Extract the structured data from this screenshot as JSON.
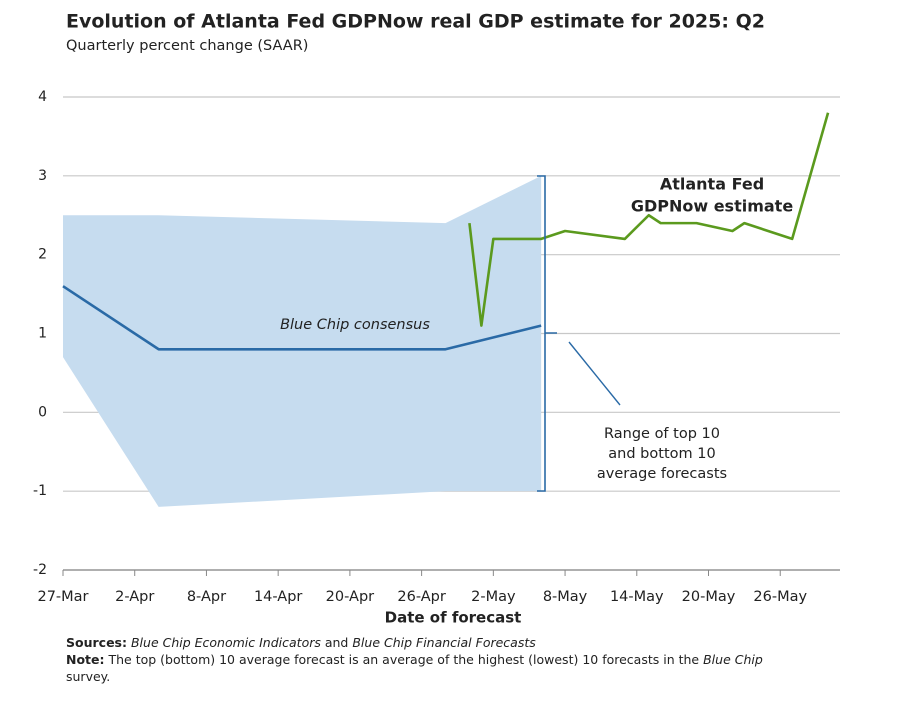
{
  "chart_data": {
    "type": "line",
    "title": "Evolution of Atlanta Fed GDPNow real GDP estimate for 2025: Q2",
    "subtitle": "Quarterly percent change (SAAR)",
    "x_label": "Date of forecast",
    "xlim": [
      "27-Mar",
      "31-May"
    ],
    "xticks": [
      "27-Mar",
      "2-Apr",
      "8-Apr",
      "14-Apr",
      "20-Apr",
      "26-Apr",
      "2-May",
      "8-May",
      "14-May",
      "20-May",
      "26-May"
    ],
    "ylim": [
      -2,
      4
    ],
    "yticks": [
      -2,
      -1,
      0,
      1,
      2,
      3,
      4
    ],
    "grid": true,
    "series": [
      {
        "name": [
          "Range of top 10",
          "and bottom 10",
          "average forecasts"
        ],
        "kind": "area",
        "color": "#c6dcef",
        "x": [
          "27-Mar",
          "4-Apr",
          "28-Apr",
          "6-May"
        ],
        "upper": [
          2.5,
          2.5,
          2.4,
          3.0
        ],
        "lower": [
          0.7,
          -1.2,
          -1.0,
          -1.0
        ]
      },
      {
        "name": [
          "Blue Chip consensus"
        ],
        "kind": "line",
        "color": "#2a6aa6",
        "x": [
          "27-Mar",
          "4-Apr",
          "28-Apr",
          "6-May"
        ],
        "values": [
          1.6,
          0.8,
          0.8,
          1.1
        ]
      },
      {
        "name": [
          "Atlanta Fed",
          "GDPNow estimate"
        ],
        "kind": "line",
        "color": "#5b9a1e",
        "x": [
          "30-Apr",
          "1-May",
          "2-May",
          "6-May",
          "8-May",
          "13-May",
          "15-May",
          "16-May",
          "19-May",
          "22-May",
          "23-May",
          "27-May",
          "30-May"
        ],
        "values": [
          2.4,
          1.1,
          2.2,
          2.2,
          2.3,
          2.2,
          2.5,
          2.4,
          2.4,
          2.3,
          2.4,
          2.2,
          3.8
        ]
      }
    ],
    "sources_label": "Sources:",
    "sources": [
      "Blue Chip Economic Indicators",
      " and ",
      "Blue Chip Financial Forecasts"
    ],
    "note_label": "Note:",
    "note": [
      " The top (bottom) 10 average forecast is an average of the highest (lowest) 10 forecasts in the ",
      "Blue Chip",
      " survey."
    ]
  }
}
